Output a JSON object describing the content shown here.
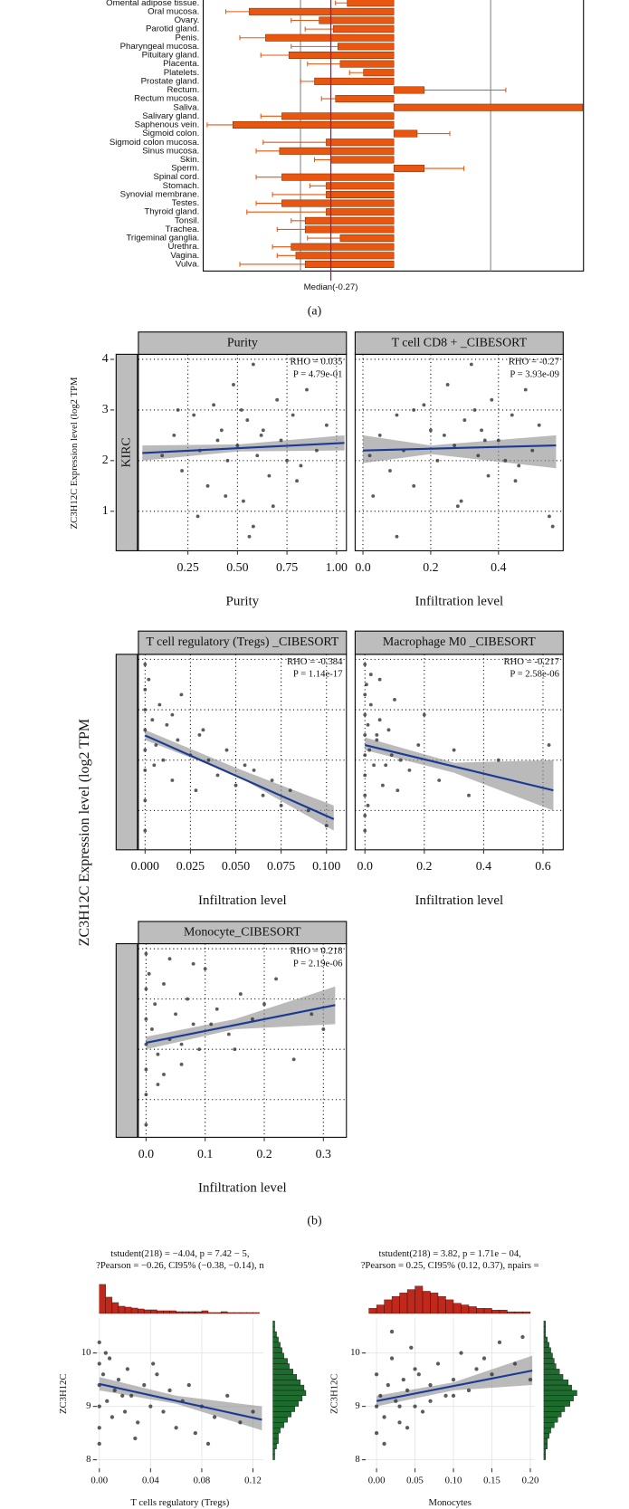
{
  "captions": [
    "(a)",
    "(b)"
  ],
  "chart_data": [
    {
      "type": "hbar",
      "categories": [
        "Omental adipose tissue.",
        "Oral mucosa.",
        "Ovary.",
        "Parotid gland.",
        "Penis.",
        "Pharyngeal mucosa.",
        "Pituitary gland.",
        "Placenta.",
        "Platelets.",
        "Prostate gland.",
        "Rectum.",
        "Rectum mucosa.",
        "Saliva.",
        "Salivary gland.",
        "Saphenous vein.",
        "Sigmoid colon.",
        "Sigmoid colon mucosa.",
        "Sinus mucosa.",
        "Skin.",
        "Sperm.",
        "Spinal cord.",
        "Stomach.",
        "Synovial membrane.",
        "Testes.",
        "Thyroid gland.",
        "Tonsil.",
        "Trachea.",
        "Trigeminal ganglia.",
        "Urethra.",
        "Vagina.",
        "Vulva."
      ],
      "values": [
        -0.2,
        -0.62,
        -0.32,
        -0.26,
        -0.55,
        -0.24,
        -0.45,
        -0.23,
        -0.13,
        -0.34,
        0.13,
        -0.25,
        0.81,
        -0.48,
        -0.69,
        0.1,
        -0.29,
        -0.49,
        -0.27,
        0.13,
        -0.48,
        -0.29,
        -0.29,
        -0.48,
        -0.29,
        -0.38,
        -0.38,
        -0.23,
        -0.44,
        -0.42,
        -0.38
      ],
      "errors": [
        0.05,
        0.1,
        0.12,
        0.12,
        0.11,
        0.2,
        0.12,
        0.14,
        0.06,
        0.06,
        0.35,
        0.06,
        0,
        0.09,
        0.11,
        0.14,
        0.27,
        0.1,
        0.07,
        0.17,
        0.11,
        0.07,
        0.23,
        0.11,
        0.34,
        0.06,
        0.12,
        0.14,
        0.08,
        0.08,
        0.28
      ],
      "color": "#e8560f",
      "error_color": "#e8560f",
      "xlim": [
        -0.817,
        0.813
      ],
      "ref_lines": [
        -0.4,
        0.415
      ],
      "median": -0.27,
      "median_label": "Median(-0.27)",
      "median_color": "#8b1a8b"
    },
    {
      "type": "scatter",
      "title": "Purity",
      "strip_label": "KIRC",
      "ylabel": "ZC3H12C Expression level (log2 TPM",
      "xlabel": "Purity",
      "annotations": [
        "RHO = 0.035",
        "P = 4.79e-01"
      ],
      "xlim": [
        0.0,
        1.05
      ],
      "ylim": [
        0.22,
        4.1
      ],
      "xticks": [
        0.25,
        {
          "value": 0.5,
          "label": "0.50"
        },
        0.75,
        {
          "value": 1,
          "label": "1.00"
        }
      ],
      "yticks": [
        1,
        2,
        3,
        4
      ],
      "ytick_labels": true,
      "grid": true,
      "x": [
        0.12,
        0.18,
        0.22,
        0.28,
        0.31,
        0.35,
        0.38,
        0.42,
        0.45,
        0.48,
        0.5,
        0.53,
        0.55,
        0.58,
        0.6,
        0.63,
        0.66,
        0.7,
        0.72,
        0.75,
        0.78,
        0.82,
        0.85,
        0.9,
        0.95,
        0.3,
        0.44,
        0.56,
        0.68,
        0.52,
        0.62,
        0.4,
        0.8,
        0.2,
        0.58
      ],
      "y": [
        2.1,
        2.5,
        1.8,
        2.9,
        2.2,
        1.5,
        3.1,
        2.6,
        2.0,
        3.5,
        2.3,
        1.2,
        2.8,
        3.9,
        2.1,
        2.6,
        1.7,
        3.2,
        2.4,
        2.0,
        2.9,
        1.9,
        3.4,
        2.2,
        2.7,
        0.9,
        1.3,
        0.5,
        1.1,
        3.0,
        2.5,
        2.4,
        1.6,
        3.0,
        0.7
      ],
      "fit": {
        "x": [
          0.02,
          1.04
        ],
        "y": [
          2.15,
          2.35
        ]
      },
      "band": {
        "x": [
          0.02,
          0.5,
          1.04
        ],
        "lower": [
          2.0,
          2.18,
          2.2
        ],
        "upper": [
          2.3,
          2.32,
          2.5
        ]
      }
    },
    {
      "type": "scatter",
      "title": "T cell CD8 + _CIBESORT",
      "xlabel": "Infiltration level",
      "annotations": [
        "RHO = -0.27",
        "P = 3.93e-09"
      ],
      "xlim": [
        -0.023,
        0.591
      ],
      "ylim": [
        0.22,
        4.1
      ],
      "xticks": [
        {
          "value": 0,
          "label": "0.0"
        },
        0.2,
        0.4
      ],
      "yticks": [
        1,
        2,
        3,
        4
      ],
      "ytick_labels": false,
      "grid": true,
      "x": [
        0.02,
        0.05,
        0.08,
        0.1,
        0.12,
        0.15,
        0.18,
        0.2,
        0.22,
        0.25,
        0.27,
        0.29,
        0.3,
        0.32,
        0.34,
        0.35,
        0.37,
        0.38,
        0.4,
        0.42,
        0.44,
        0.46,
        0.48,
        0.5,
        0.52,
        0.55,
        0.03,
        0.1,
        0.28,
        0.33,
        0.24,
        0.36,
        0.45,
        0.15,
        0.56
      ],
      "y": [
        2.1,
        2.5,
        1.8,
        2.9,
        2.2,
        1.5,
        3.1,
        2.6,
        2.0,
        3.5,
        2.3,
        1.2,
        2.8,
        3.9,
        2.1,
        2.6,
        1.7,
        3.2,
        2.4,
        2.0,
        2.9,
        1.9,
        3.4,
        2.2,
        2.7,
        0.9,
        1.3,
        0.5,
        1.1,
        3.0,
        2.5,
        2.4,
        1.6,
        3.0,
        0.7
      ],
      "fit": {
        "x": [
          0.0,
          0.57
        ],
        "y": [
          2.2,
          2.3
        ]
      },
      "band": {
        "x": [
          0.0,
          0.2,
          0.57
        ],
        "lower": [
          1.95,
          2.13,
          1.85
        ],
        "upper": [
          2.5,
          2.3,
          2.5
        ]
      }
    },
    {
      "type": "scatter",
      "title": "T cell regulatory (Tregs) _CIBESORT",
      "ylabel": "ZC3H12C Expression level (log2 TPM",
      "xlabel": "Infiltration level",
      "annotations": [
        "RHO = -0.384",
        "P = 1.14e-17"
      ],
      "xlim": [
        -0.0037,
        0.111
      ],
      "ylim": [
        0.22,
        4.1
      ],
      "xticks": [
        {
          "value": 0,
          "label": "0.000"
        },
        0.025,
        {
          "value": 0.05,
          "label": "0.050"
        },
        0.075,
        {
          "value": 0.1,
          "label": "0.100"
        }
      ],
      "yticks": [
        1,
        2,
        3,
        4
      ],
      "ytick_labels": false,
      "grid": true,
      "x": [
        0,
        0,
        0,
        0,
        0,
        0,
        0,
        0.002,
        0.004,
        0.006,
        0.008,
        0.01,
        0.012,
        0.015,
        0.018,
        0.02,
        0.025,
        0.028,
        0.03,
        0.035,
        0.04,
        0.045,
        0.05,
        0.055,
        0.06,
        0.065,
        0.07,
        0.075,
        0.08,
        0.09,
        0.1,
        0.0,
        0.005,
        0.015,
        0.032
      ],
      "y": [
        3.9,
        3.4,
        3.0,
        2.6,
        2.2,
        1.8,
        1.2,
        3.6,
        2.8,
        2.3,
        3.1,
        2.0,
        2.7,
        1.6,
        2.4,
        3.3,
        2.1,
        1.4,
        2.5,
        2.0,
        1.7,
        2.2,
        1.5,
        1.9,
        1.8,
        1.3,
        1.6,
        1.1,
        1.4,
        1.0,
        0.7,
        0.6,
        1.9,
        2.9,
        2.6
      ],
      "fit": {
        "x": [
          0.0,
          0.104
        ],
        "y": [
          2.49,
          0.83
        ]
      },
      "band": {
        "x": [
          0.0,
          0.05,
          0.104
        ],
        "lower": [
          2.4,
          1.7,
          0.6
        ],
        "upper": [
          2.6,
          1.85,
          1.1
        ]
      }
    },
    {
      "type": "scatter",
      "title": "Macrophage M0 _CIBESORT",
      "xlabel": "Infiltration level",
      "annotations": [
        "RHO = -0.217",
        "P = 2.58e-06"
      ],
      "xlim": [
        -0.033,
        0.668
      ],
      "ylim": [
        0.22,
        4.1
      ],
      "xticks": [
        {
          "value": 0,
          "label": "0.0"
        },
        0.2,
        0.4,
        0.6
      ],
      "yticks": [
        1,
        2,
        3,
        4
      ],
      "ytick_labels": false,
      "grid": true,
      "x": [
        0,
        0,
        0,
        0,
        0,
        0,
        0,
        0,
        0.005,
        0.01,
        0.015,
        0.02,
        0.03,
        0.04,
        0.05,
        0.06,
        0.08,
        0.1,
        0.12,
        0.15,
        0.18,
        0.2,
        0.25,
        0.3,
        0.35,
        0.45,
        0.62,
        0.01,
        0.02,
        0.04,
        0.07,
        0.0,
        0.09,
        0.05,
        0.11
      ],
      "y": [
        3.9,
        3.3,
        2.9,
        2.5,
        2.1,
        1.7,
        1.3,
        0.6,
        3.5,
        2.7,
        2.2,
        3.1,
        1.9,
        2.4,
        2.8,
        1.5,
        2.6,
        3.2,
        2.0,
        1.8,
        2.3,
        2.9,
        1.6,
        2.2,
        1.3,
        2.0,
        2.3,
        1.1,
        3.7,
        2.5,
        1.9,
        0.9,
        2.1,
        3.6,
        1.4
      ],
      "fit": {
        "x": [
          0.0,
          0.635
        ],
        "y": [
          2.3,
          1.4
        ]
      },
      "band": {
        "x": [
          0.0,
          0.3,
          0.635
        ],
        "lower": [
          2.2,
          1.75,
          1.0
        ],
        "upper": [
          2.45,
          1.95,
          2.0
        ]
      }
    },
    {
      "type": "scatter",
      "title": "Monocyte_CIBESORT",
      "xlabel": "Infiltration level",
      "annotations": [
        "RHO = 0.218",
        "P = 2.19e-06"
      ],
      "xlim": [
        -0.013,
        0.339
      ],
      "ylim": [
        0.25,
        4.1
      ],
      "xticks": [
        {
          "value": 0,
          "label": "0.0"
        },
        0.1,
        0.2,
        0.3
      ],
      "yticks": [
        1,
        2,
        3,
        4
      ],
      "ytick_labels": false,
      "grid": true,
      "x": [
        0,
        0,
        0,
        0,
        0,
        0,
        0,
        0.005,
        0.01,
        0.015,
        0.02,
        0.03,
        0.04,
        0.05,
        0.06,
        0.07,
        0.08,
        0.09,
        0.1,
        0.12,
        0.14,
        0.16,
        0.18,
        0.2,
        0.22,
        0.25,
        0.28,
        0.3,
        0.02,
        0.04,
        0.06,
        0.11,
        0.03,
        0.08,
        0.15
      ],
      "y": [
        3.9,
        3.2,
        2.6,
        2.1,
        1.6,
        1.1,
        0.5,
        3.5,
        2.4,
        2.9,
        1.9,
        3.3,
        2.2,
        2.7,
        1.7,
        3.0,
        2.5,
        2.0,
        3.6,
        2.8,
        2.3,
        3.1,
        2.6,
        2.9,
        3.4,
        1.8,
        2.7,
        2.4,
        1.3,
        3.8,
        2.1,
        2.5,
        1.5,
        3.7,
        2.0
      ],
      "fit": {
        "x": [
          0.0,
          0.32
        ],
        "y": [
          2.13,
          2.88
        ]
      },
      "band": {
        "x": [
          0.0,
          0.15,
          0.32
        ],
        "lower": [
          2.0,
          2.4,
          2.5
        ],
        "upper": [
          2.25,
          2.6,
          3.25
        ]
      }
    },
    {
      "type": "marginal",
      "subtitle": [
        "tstudent(218) = −4.04, p = 7.42 − 5,",
        "?Pearson = −0.26, CI95% (−0.38, −0.14), n"
      ],
      "xlabel": "T cells regulatory (Tregs)",
      "ylabel": "ZC3H12C",
      "xlim": [
        -0.002,
        0.128
      ],
      "ylim": [
        7.84,
        10.65
      ],
      "xticks": [
        {
          "value": 0,
          "label": "0.00"
        },
        0.04,
        0.08,
        0.12
      ],
      "yticks": [
        8,
        9,
        10
      ],
      "grid": true,
      "x": [
        0,
        0,
        0,
        0,
        0,
        0,
        0.003,
        0.006,
        0.008,
        0.01,
        0.012,
        0.015,
        0.02,
        0.022,
        0.025,
        0.03,
        0.035,
        0.04,
        0.045,
        0.05,
        0.055,
        0.06,
        0.065,
        0.07,
        0.075,
        0.08,
        0.09,
        0.1,
        0.11,
        0.12,
        0.005,
        0.018,
        0.028,
        0.042,
        0.085
      ],
      "y": [
        10.2,
        9.8,
        9.4,
        9.0,
        8.6,
        8.3,
        9.6,
        9.1,
        9.9,
        8.8,
        9.3,
        9.5,
        8.9,
        9.7,
        9.2,
        8.7,
        9.4,
        9.0,
        9.6,
        8.9,
        9.3,
        8.6,
        9.1,
        9.4,
        8.5,
        9.0,
        8.8,
        9.2,
        8.7,
        8.9,
        10.0,
        9.2,
        8.4,
        9.8,
        8.3
      ],
      "fit": {
        "x": [
          0.0,
          0.127
        ],
        "y": [
          9.42,
          8.75
        ]
      },
      "band": {
        "x": [
          0.0,
          0.06,
          0.127
        ],
        "lower": [
          9.3,
          9.05,
          8.55
        ],
        "upper": [
          9.55,
          9.2,
          9.0
        ]
      },
      "top_hist": {
        "color": "#c0281b",
        "ylim": [
          0,
          32
        ],
        "bins": [
          0,
          0.005,
          0.01,
          0.015,
          0.02,
          0.025,
          0.03,
          0.035,
          0.04,
          0.045,
          0.05,
          0.055,
          0.06,
          0.065,
          0.07,
          0.075,
          0.08,
          0.085,
          0.09,
          0.095,
          0.1,
          0.105,
          0.11,
          0.115,
          0.12,
          0.125
        ],
        "counts": [
          32,
          18,
          12,
          8,
          7,
          6,
          5,
          4,
          4,
          3,
          3,
          3,
          2,
          2,
          2,
          2,
          3,
          1,
          1,
          2,
          1,
          1,
          1,
          1,
          1
        ]
      },
      "right_hist": {
        "color": "#1e6b2e",
        "xlim": [
          0,
          19
        ],
        "bins": [
          8.0,
          8.1,
          8.2,
          8.3,
          8.4,
          8.5,
          8.6,
          8.7,
          8.8,
          8.9,
          9.0,
          9.1,
          9.2,
          9.3,
          9.4,
          9.5,
          9.6,
          9.7,
          9.8,
          9.9,
          10.0,
          10.1,
          10.2,
          10.3,
          10.4,
          10.5,
          10.6
        ],
        "counts": [
          1,
          1,
          2,
          3,
          3,
          4,
          6,
          8,
          10,
          12,
          14,
          16,
          18,
          17,
          15,
          13,
          11,
          9,
          8,
          6,
          5,
          4,
          3,
          2,
          1,
          1
        ]
      }
    },
    {
      "type": "marginal",
      "subtitle": [
        "tstudent(218) = 3.82, p = 1.71e − 04,",
        "?Pearson = 0.25, CI95% (0.12, 0.37), npairs ="
      ],
      "xlabel": "Monocytes",
      "ylabel": "ZC3H12C",
      "xlim": [
        -0.014,
        0.205
      ],
      "ylim": [
        7.84,
        10.65
      ],
      "xticks": [
        {
          "value": 0,
          "label": "0.00"
        },
        0.05,
        {
          "value": 0.1,
          "label": "0.10"
        },
        0.15,
        {
          "value": 0.2,
          "label": "0.20"
        }
      ],
      "yticks": [
        8,
        9,
        10
      ],
      "grid": true,
      "x": [
        0,
        0,
        0,
        0.005,
        0.01,
        0.015,
        0.02,
        0.025,
        0.03,
        0.035,
        0.04,
        0.045,
        0.05,
        0.055,
        0.06,
        0.07,
        0.08,
        0.09,
        0.1,
        0.11,
        0.12,
        0.13,
        0.14,
        0.15,
        0.16,
        0.18,
        0.19,
        0.2,
        0.01,
        0.03,
        0.05,
        0.07,
        0.02,
        0.04,
        0.1
      ],
      "y": [
        9.0,
        8.5,
        9.6,
        9.2,
        8.8,
        9.4,
        9.9,
        9.1,
        8.7,
        9.5,
        9.3,
        10.1,
        9.0,
        9.6,
        8.9,
        9.4,
        9.8,
        9.2,
        9.5,
        10.0,
        9.3,
        9.7,
        9.9,
        9.6,
        10.2,
        9.8,
        10.3,
        9.5,
        8.3,
        9.0,
        9.7,
        9.1,
        10.4,
        8.6,
        9.2
      ],
      "fit": {
        "x": [
          0.0,
          0.2025
        ],
        "y": [
          9.1,
          9.67
        ]
      },
      "band": {
        "x": [
          0.0,
          0.1,
          0.2025
        ],
        "lower": [
          9.0,
          9.3,
          9.4
        ],
        "upper": [
          9.2,
          9.45,
          9.95
        ]
      },
      "top_hist": {
        "color": "#c0281b",
        "ylim": [
          0,
          17
        ],
        "bins": [
          -0.01,
          0.0,
          0.01,
          0.02,
          0.03,
          0.04,
          0.05,
          0.06,
          0.07,
          0.08,
          0.09,
          0.1,
          0.11,
          0.12,
          0.13,
          0.14,
          0.15,
          0.16,
          0.17,
          0.18,
          0.19,
          0.2
        ],
        "counts": [
          3,
          5,
          8,
          10,
          12,
          14,
          16,
          13,
          12,
          10,
          8,
          6,
          5,
          4,
          3,
          3,
          2,
          2,
          1,
          1,
          1
        ]
      },
      "right_hist": {
        "color": "#1e6b2e",
        "xlim": [
          0,
          20
        ],
        "bins": [
          8.0,
          8.1,
          8.2,
          8.3,
          8.4,
          8.5,
          8.6,
          8.7,
          8.8,
          8.9,
          9.0,
          9.1,
          9.2,
          9.3,
          9.4,
          9.5,
          9.6,
          9.7,
          9.8,
          9.9,
          10.0,
          10.1,
          10.2,
          10.3,
          10.4,
          10.5,
          10.6
        ],
        "counts": [
          1,
          1,
          2,
          2,
          3,
          4,
          6,
          8,
          10,
          12,
          15,
          17,
          19,
          16,
          14,
          11,
          9,
          7,
          6,
          5,
          4,
          3,
          2,
          1,
          1,
          1
        ]
      }
    }
  ]
}
